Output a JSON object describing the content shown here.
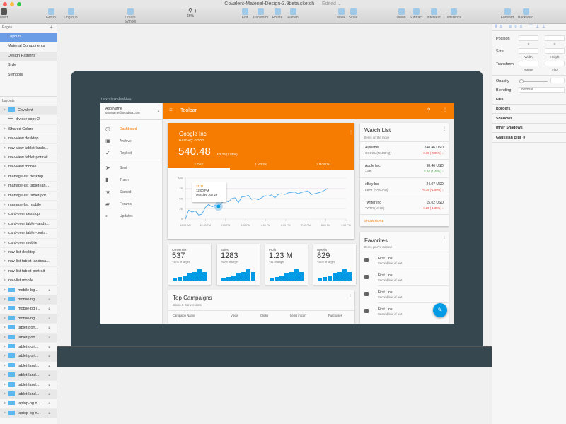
{
  "window": {
    "title": "Covalent-Material-Design-3.9beta.sketch",
    "status": "— Edited ⌄"
  },
  "toolbar": {
    "insert": "Insert",
    "group": "Group",
    "ungroup": "Ungroup",
    "create_symbol": "Create Symbol",
    "zoom": "66%",
    "zoom_minus": "−",
    "zoom_plus": "+",
    "edit": "Edit",
    "transform": "Transform",
    "rotate": "Rotate",
    "flatten": "Flatten",
    "mask": "Mask",
    "scale": "Scale",
    "union": "Union",
    "subtract": "Subtract",
    "intersect": "Intersect",
    "difference": "Difference",
    "forward": "Forward",
    "backward": "Backward"
  },
  "pages": {
    "header": "Pages",
    "add": "+",
    "items": [
      {
        "label": "Layouts",
        "selected": true
      },
      {
        "label": "Material Components"
      },
      {
        "label": "Design Patterns",
        "alt": true
      },
      {
        "label": "Style"
      },
      {
        "label": "Symbols"
      }
    ]
  },
  "layers": {
    "header": "Layouts",
    "items": [
      {
        "label": "Covalent",
        "folder": true,
        "alt": true
      },
      {
        "label": "divider copy 2",
        "line": true
      },
      {
        "label": "Shared Colors"
      },
      {
        "label": "nav-view desktop"
      },
      {
        "label": "nav-view tablet-lands..."
      },
      {
        "label": "nav-view tablet-portrait"
      },
      {
        "label": "nav-view mobile"
      },
      {
        "label": "manage-list desktop"
      },
      {
        "label": "manage-list tablet-lan..."
      },
      {
        "label": "manage-list tablet-por..."
      },
      {
        "label": "manage-list mobile"
      },
      {
        "label": "card-over desktop"
      },
      {
        "label": "card-over tablet-lands..."
      },
      {
        "label": "card-over tablet-portr..."
      },
      {
        "label": "card-over mobile"
      },
      {
        "label": "nav-list desktop"
      },
      {
        "label": "nav-list tablet-landsca..."
      },
      {
        "label": "nav-list tablet-portrait"
      },
      {
        "label": "nav-list mobile"
      },
      {
        "label": "mobile-bg...",
        "folder": true,
        "locked": true
      },
      {
        "label": "mobile-bg...",
        "folder": true,
        "locked": true,
        "alt": true
      },
      {
        "label": "mobile-bg l...",
        "folder": true,
        "locked": true
      },
      {
        "label": "mobile-bg...",
        "folder": true,
        "locked": true,
        "alt": true
      },
      {
        "label": "tablet-port...",
        "folder": true,
        "locked": true
      },
      {
        "label": "tablet-port...",
        "folder": true,
        "locked": true,
        "alt": true
      },
      {
        "label": "tablet-port...",
        "folder": true,
        "locked": true
      },
      {
        "label": "tablet-port...",
        "folder": true,
        "locked": true,
        "alt": true
      },
      {
        "label": "tablet-land...",
        "folder": true,
        "locked": true
      },
      {
        "label": "tablet-land...",
        "folder": true,
        "locked": true,
        "alt": true
      },
      {
        "label": "tablet-land...",
        "folder": true,
        "locked": true
      },
      {
        "label": "tablet-land...",
        "folder": true,
        "locked": true,
        "alt": true
      },
      {
        "label": "laptop-bg n...",
        "folder": true,
        "locked": true
      },
      {
        "label": "laptop-bg n...",
        "folder": true,
        "locked": true,
        "alt": true
      }
    ]
  },
  "inspector": {
    "position": "Position",
    "x": "X",
    "y": "Y",
    "size": "Size",
    "width": "Width",
    "height": "Height",
    "transform": "Transform",
    "rotate": "Rotate",
    "flip": "Flip",
    "opacity": "Opacity",
    "blending": "Blending",
    "blending_value": "Normal",
    "sections": [
      "Fills",
      "Borders",
      "Shadows",
      "Inner Shadows",
      "Gaussian Blur ⇳"
    ]
  },
  "artboard": {
    "label": "nav-view desktop"
  },
  "app": {
    "accent": "#f57c00",
    "blue": "#039be5",
    "account": {
      "name": "App Name",
      "email": "username@teradata.com"
    },
    "toolbar_title": "Toolbar",
    "nav": [
      {
        "icon": "clock",
        "label": "Dashboard",
        "active": true,
        "glyph": "◷"
      },
      {
        "icon": "archive",
        "label": "Archive",
        "glyph": "▣"
      },
      {
        "icon": "check",
        "label": "Replied",
        "glyph": "✓"
      },
      {
        "icon": "send",
        "label": "Sent",
        "glyph": "➤",
        "divider": true
      },
      {
        "icon": "trash",
        "label": "Trash",
        "glyph": "▮"
      },
      {
        "icon": "star",
        "label": "Starred",
        "glyph": "★"
      },
      {
        "icon": "forum",
        "label": "Forums",
        "glyph": "▰"
      },
      {
        "icon": "flag",
        "label": "Updates",
        "glyph": "▪"
      }
    ],
    "stock": {
      "name": "Google Inc",
      "ticker": "NASDAQ: GOOG",
      "price": "540.48",
      "change": "2.29 (2.85%)",
      "tabs": [
        "1 DAY",
        "1 WEEK",
        "1 MONTH"
      ],
      "tooltip": {
        "value": "31.21",
        "time": "12:00 PM",
        "date": "Monday, Jun 29"
      }
    },
    "watchlist": {
      "title": "Watch List",
      "subtitle": "Items on the move",
      "show_more": "SHOW MORE",
      "items": [
        {
          "name": "Alphabet",
          "ticker": "GOOGL (NASDAQ)",
          "price": "748.46 USD",
          "change": "-0.39 (-0.05%)",
          "up": false
        },
        {
          "name": "Apple Inc.",
          "ticker": "AAPL",
          "price": "98.46 USD",
          "change": "1.40 (1.48%)",
          "up": true
        },
        {
          "name": "eBay Inc",
          "ticker": "EBAY (NASDAQ)",
          "price": "24.07 USD",
          "change": "-0.39 (-1.59%)",
          "up": false
        },
        {
          "name": "Twitter Inc",
          "ticker": "TWTR (NYSE)",
          "price": "15.02 USD",
          "change": "-0.20 (-1.35%)",
          "up": false
        }
      ]
    },
    "favorites": {
      "title": "Favorites",
      "subtitle": "Items you've starred",
      "items": [
        {
          "l1": "First Line",
          "l2": "Second line of text"
        },
        {
          "l1": "First Line",
          "l2": "Second line of text"
        },
        {
          "l1": "First Line",
          "l2": "Second line of text"
        },
        {
          "l1": "First Line",
          "l2": "Second line of text"
        }
      ]
    },
    "kpis": [
      {
        "label": "Conversion",
        "value": "537",
        "sub": "+32% of target"
      },
      {
        "label": "Sales",
        "value": "1283",
        "sub": "+69% of target"
      },
      {
        "label": "Profit",
        "value": "1.23 M",
        "sub": "+41 of target"
      },
      {
        "label": "Upsells",
        "value": "829",
        "sub": "+33% of target"
      }
    ],
    "kpi_bars": [
      2,
      3,
      4,
      6,
      7,
      9,
      7
    ],
    "campaigns": {
      "title": "Top Campaigns",
      "subtitle": "Clicks & Conversions",
      "columns": [
        "Campaign Name",
        "Views",
        "Clicks",
        "Items in cart",
        "Purchases"
      ]
    }
  },
  "chart_data": {
    "type": "line",
    "ylim": [
      0,
      100
    ],
    "yticks": [
      "0",
      "25",
      "50",
      "75",
      "100"
    ],
    "xticks": [
      "10:00 AM",
      "12:00 PM",
      "2:00 PM",
      "3:00 PM",
      "4:00 PM",
      "6:00 PM",
      "7:00 PM",
      "8:00 PM",
      "9:00 PM"
    ],
    "values": [
      0,
      22,
      17,
      20,
      10,
      12,
      28,
      36,
      30,
      33,
      31,
      40,
      45,
      42,
      50,
      52,
      40,
      54,
      55,
      58,
      48,
      50,
      47,
      52,
      57,
      56,
      59,
      52,
      60,
      62,
      60,
      64,
      65,
      66,
      62,
      65,
      67,
      69,
      60,
      62,
      64,
      66,
      70,
      75
    ],
    "grid": true
  }
}
